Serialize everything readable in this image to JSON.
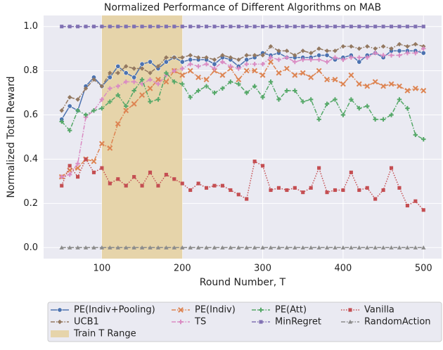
{
  "chart_data": {
    "type": "line",
    "title": "Normalized Performance of Different Algorithms on MAB",
    "x_label": "Round Number, T",
    "y_label": "Normalized Total Reward",
    "x": [
      50,
      60,
      70,
      80,
      90,
      100,
      110,
      120,
      130,
      140,
      150,
      160,
      170,
      180,
      190,
      200,
      210,
      220,
      230,
      240,
      250,
      260,
      270,
      280,
      290,
      300,
      310,
      320,
      330,
      340,
      350,
      360,
      370,
      380,
      390,
      400,
      410,
      420,
      430,
      440,
      450,
      460,
      470,
      480,
      490,
      500
    ],
    "xlim": [
      27.5,
      522.5
    ],
    "xticks": [
      100,
      200,
      300,
      400,
      500
    ],
    "ylim": [
      -0.05,
      1.05
    ],
    "yticks": [
      {
        "value": 0,
        "label": "0.0"
      },
      0.2,
      0.4,
      0.6,
      0.8,
      {
        "value": 1,
        "label": "1.0"
      }
    ],
    "grid": true,
    "span": {
      "name": "Train T Range",
      "range": [
        100,
        200
      ],
      "color": "#e6d4aa"
    },
    "series": [
      {
        "name": "PE(Indiv+Pooling)",
        "color": "#4c72b0",
        "marker": "circle",
        "dash": "solid",
        "values": [
          0.58,
          0.64,
          0.62,
          0.73,
          0.77,
          0.73,
          0.77,
          0.82,
          0.79,
          0.77,
          0.83,
          0.84,
          0.81,
          0.84,
          0.86,
          0.84,
          0.85,
          0.85,
          0.85,
          0.83,
          0.86,
          0.85,
          0.82,
          0.85,
          0.86,
          0.88,
          0.87,
          0.88,
          0.86,
          0.86,
          0.86,
          0.86,
          0.87,
          0.87,
          0.85,
          0.86,
          0.87,
          0.84,
          0.87,
          0.88,
          0.86,
          0.89,
          0.89,
          0.89,
          0.89,
          0.88
        ]
      },
      {
        "name": "UCB1",
        "color": "#937860",
        "marker": "diamond",
        "dash": "dashdot",
        "values": [
          0.62,
          0.68,
          0.67,
          0.72,
          0.76,
          0.73,
          0.79,
          0.79,
          0.82,
          0.81,
          0.81,
          0.79,
          0.82,
          0.86,
          0.86,
          0.86,
          0.87,
          0.86,
          0.86,
          0.85,
          0.87,
          0.86,
          0.85,
          0.87,
          0.87,
          0.87,
          0.91,
          0.89,
          0.89,
          0.87,
          0.89,
          0.88,
          0.9,
          0.89,
          0.89,
          0.91,
          0.91,
          0.9,
          0.91,
          0.9,
          0.91,
          0.9,
          0.92,
          0.91,
          0.92,
          0.91
        ]
      },
      {
        "name": "PE(Indiv)",
        "color": "#dd8452",
        "marker": "x",
        "dash": "dashdot",
        "values": [
          0.32,
          0.35,
          0.36,
          0.4,
          0.39,
          0.47,
          0.45,
          0.56,
          0.62,
          0.65,
          0.69,
          0.72,
          0.76,
          0.75,
          0.8,
          0.78,
          0.8,
          0.77,
          0.76,
          0.8,
          0.78,
          0.81,
          0.76,
          0.8,
          0.8,
          0.78,
          0.84,
          0.79,
          0.81,
          0.78,
          0.79,
          0.77,
          0.8,
          0.76,
          0.76,
          0.74,
          0.78,
          0.74,
          0.73,
          0.75,
          0.73,
          0.74,
          0.73,
          0.71,
          0.72,
          0.71
        ]
      },
      {
        "name": "TS",
        "color": "#da8bc3",
        "marker": "plus",
        "dash": "dashdot",
        "values": [
          0.32,
          0.33,
          0.38,
          0.59,
          0.62,
          0.67,
          0.72,
          0.73,
          0.75,
          0.75,
          0.74,
          0.76,
          0.74,
          0.78,
          0.8,
          0.81,
          0.83,
          0.82,
          0.83,
          0.81,
          0.84,
          0.82,
          0.81,
          0.83,
          0.83,
          0.83,
          0.86,
          0.85,
          0.86,
          0.84,
          0.85,
          0.85,
          0.85,
          0.84,
          0.86,
          0.85,
          0.86,
          0.86,
          0.86,
          0.88,
          0.87,
          0.87,
          0.87,
          0.88,
          0.88,
          0.9
        ]
      },
      {
        "name": "PE(Att)",
        "color": "#55a868",
        "marker": "plus",
        "dash": "dashdot",
        "values": [
          0.57,
          0.53,
          0.62,
          0.6,
          0.62,
          0.63,
          0.66,
          0.69,
          0.64,
          0.71,
          0.76,
          0.66,
          0.67,
          0.79,
          0.75,
          0.74,
          0.68,
          0.71,
          0.73,
          0.7,
          0.72,
          0.75,
          0.74,
          0.7,
          0.73,
          0.68,
          0.75,
          0.67,
          0.71,
          0.71,
          0.66,
          0.67,
          0.58,
          0.65,
          0.67,
          0.6,
          0.67,
          0.63,
          0.64,
          0.58,
          0.58,
          0.6,
          0.67,
          0.63,
          0.51,
          0.49
        ]
      },
      {
        "name": "MinRegret",
        "color": "#8172b3",
        "marker": "square",
        "dash": "dashdot",
        "values": [
          1,
          1,
          1,
          1,
          1,
          1,
          1,
          1,
          1,
          1,
          1,
          1,
          1,
          1,
          1,
          1,
          1,
          1,
          1,
          1,
          1,
          1,
          1,
          1,
          1,
          1,
          1,
          1,
          1,
          1,
          1,
          1,
          1,
          1,
          1,
          1,
          1,
          1,
          1,
          1,
          1,
          1,
          1,
          1,
          1,
          1
        ]
      },
      {
        "name": "Vanilla",
        "color": "#c44e52",
        "marker": "square",
        "dash": "dotted",
        "values": [
          0.28,
          0.37,
          0.32,
          0.4,
          0.34,
          0.36,
          0.29,
          0.31,
          0.28,
          0.32,
          0.28,
          0.34,
          0.28,
          0.33,
          0.31,
          0.29,
          0.26,
          0.29,
          0.27,
          0.28,
          0.28,
          0.26,
          0.24,
          0.22,
          0.39,
          0.37,
          0.26,
          0.27,
          0.26,
          0.27,
          0.25,
          0.27,
          0.36,
          0.25,
          0.26,
          0.26,
          0.34,
          0.26,
          0.27,
          0.22,
          0.26,
          0.36,
          0.27,
          0.19,
          0.21,
          0.17
        ]
      },
      {
        "name": "RandomAction",
        "color": "#8c8c8c",
        "marker": "triangle",
        "dash": "dashdot",
        "values": [
          0,
          0,
          0,
          0,
          0,
          0,
          0,
          0,
          0,
          0,
          0,
          0,
          0,
          0,
          0,
          0,
          0,
          0,
          0,
          0,
          0,
          0,
          0,
          0,
          0,
          0,
          0,
          0,
          0,
          0,
          0,
          0,
          0,
          0,
          0,
          0,
          0,
          0,
          0,
          0,
          0,
          0,
          0,
          0,
          0,
          0
        ]
      }
    ]
  }
}
